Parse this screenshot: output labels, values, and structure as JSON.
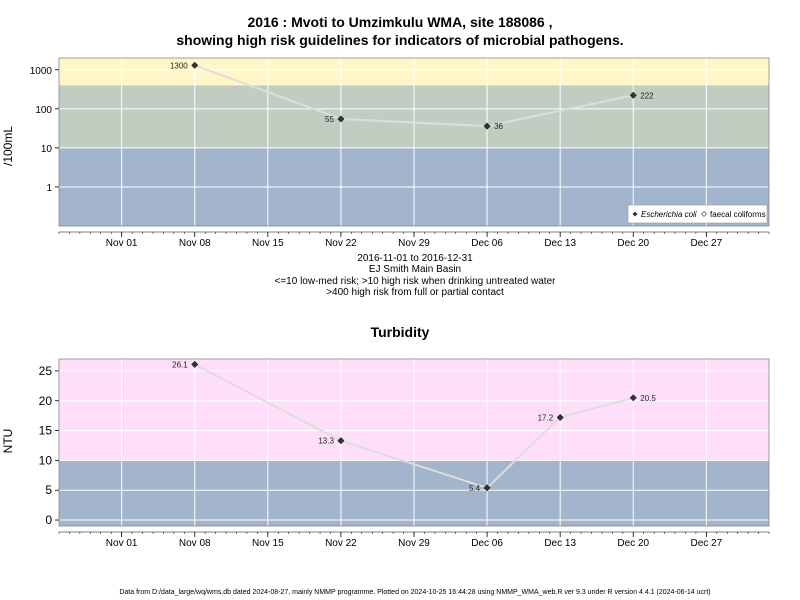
{
  "page": {
    "title_line1": "2016 : Mvoti to Umzimkulu WMA, site 188086 ,",
    "title_line2": "showing high risk guidelines for indicators of microbial pathogens.",
    "caption_lines": [
      "2016-11-01 to 2016-12-31",
      "EJ Smith Main Basin",
      "<=10 low-med risk; >10 high risk when drinking untreated water",
      ">400 high risk from full or partial contact"
    ],
    "footer": "Data from D:/data_large/wq/wms.db dated 2024-08-27, mainly NMMP programme. Plotted on 2024-10-25 16:44:28 using NMMP_WMA_web.R ver 9.3 under R version 4.4.1 (2024-06-14 ucrt)"
  },
  "colors": {
    "band_blue": "#a2b5cd",
    "band_grey": "#c2cdc1",
    "band_yellow": "#fff7c8",
    "band_pink": "#ffdefa",
    "line": "#dddddd",
    "grid": "#ffffff",
    "marker": "#333333",
    "panel_border": "#888888"
  },
  "chart_data": [
    {
      "type": "line",
      "title": "",
      "xlabel": "",
      "ylabel": "/100mL",
      "y_scale": "log10",
      "ylim": [
        0.1,
        2000
      ],
      "xlim": [
        "2016-10-26",
        "2017-01-02"
      ],
      "x_ticks": [
        "2016-11-01",
        "2016-11-08",
        "2016-11-15",
        "2016-11-22",
        "2016-11-29",
        "2016-12-06",
        "2016-12-13",
        "2016-12-20",
        "2016-12-27"
      ],
      "x_tick_labels": [
        "Nov 01",
        "Nov 08",
        "Nov 15",
        "Nov 22",
        "Nov 29",
        "Dec 06",
        "Dec 13",
        "Dec 20",
        "Dec 27"
      ],
      "y_ticks": [
        1,
        10,
        100,
        1000
      ],
      "y_tick_labels": [
        "1",
        "10",
        "100",
        "1000"
      ],
      "grid": true,
      "bands": [
        {
          "from": 0.1,
          "to": 10,
          "color": "#a2b5cd"
        },
        {
          "from": 10,
          "to": 400,
          "color": "#c2cdc1"
        },
        {
          "from": 400,
          "to": 2000,
          "color": "#fff7c8"
        }
      ],
      "series": [
        {
          "name": "Escherichia coli",
          "marker": "filled-diamond",
          "x": [
            "2016-11-08",
            "2016-11-22",
            "2016-12-06",
            "2016-12-20"
          ],
          "y": [
            1300,
            55,
            36,
            222
          ],
          "labels": [
            "1300",
            "55",
            "36",
            "222"
          ],
          "label_side": [
            "left",
            "left",
            "right",
            "right"
          ]
        }
      ],
      "legend": {
        "placement": "bottom-right",
        "entries": [
          {
            "label": "Escherichia coli",
            "marker": "filled-diamond",
            "italic": true
          },
          {
            "label": "faecal coliforms",
            "marker": "open-diamond",
            "italic": false
          }
        ]
      }
    },
    {
      "type": "line",
      "title": "Turbidity",
      "xlabel": "",
      "ylabel": "NTU",
      "y_scale": "linear",
      "ylim": [
        -1,
        27
      ],
      "xlim": [
        "2016-10-26",
        "2017-01-02"
      ],
      "x_ticks": [
        "2016-11-01",
        "2016-11-08",
        "2016-11-15",
        "2016-11-22",
        "2016-11-29",
        "2016-12-06",
        "2016-12-13",
        "2016-12-20",
        "2016-12-27"
      ],
      "x_tick_labels": [
        "Nov 01",
        "Nov 08",
        "Nov 15",
        "Nov 22",
        "Nov 29",
        "Dec 06",
        "Dec 13",
        "Dec 20",
        "Dec 27"
      ],
      "y_ticks": [
        0,
        5,
        10,
        15,
        20,
        25
      ],
      "y_tick_labels": [
        "0",
        "5",
        "10",
        "15",
        "20",
        "25"
      ],
      "grid": true,
      "bands": [
        {
          "from": -1,
          "to": 10,
          "color": "#a2b5cd"
        },
        {
          "from": 10,
          "to": 27,
          "color": "#ffdefa"
        }
      ],
      "series": [
        {
          "marker": "filled-diamond",
          "x": [
            "2016-11-08",
            "2016-11-22",
            "2016-12-06",
            "2016-12-13",
            "2016-12-20"
          ],
          "y": [
            26.1,
            13.3,
            5.4,
            17.2,
            20.5
          ],
          "labels": [
            "26.1",
            "13.3",
            "5.4",
            "17.2",
            "20.5"
          ],
          "label_side": [
            "left",
            "left",
            "left",
            "left",
            "right"
          ]
        }
      ]
    }
  ]
}
